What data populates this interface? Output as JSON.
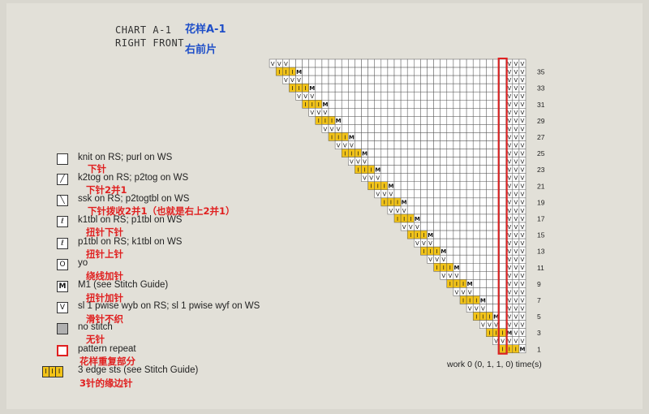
{
  "header": {
    "chart_label": "CHART A-1",
    "piece_label": "RIGHT FRONT",
    "chart_label_cn": "花样A-1",
    "piece_label_cn": "右前片"
  },
  "legend": [
    {
      "symbol": "knit",
      "glyph": "",
      "en": "knit on RS; purl on WS",
      "cn": "下针"
    },
    {
      "symbol": "k2tog",
      "glyph": "╱",
      "en": "k2tog on RS; p2tog on WS",
      "cn": "下针2并1"
    },
    {
      "symbol": "ssk",
      "glyph": "╲",
      "en": "ssk on RS; p2togtbl on WS",
      "cn": "下针拨收2并1（也就是右上2并1）"
    },
    {
      "symbol": "k1tbl",
      "glyph": "ℓ",
      "en": "k1tbl on RS; p1tbl on WS",
      "cn": "扭针下针"
    },
    {
      "symbol": "p1tbl",
      "glyph": "ℓ",
      "en": "p1tbl on RS; k1tbl on WS",
      "cn": "扭针上针"
    },
    {
      "symbol": "yo",
      "glyph": "O",
      "en": "yo",
      "cn": "绕线加针"
    },
    {
      "symbol": "m1",
      "glyph": "M",
      "en": "M1 (see Stitch Guide)",
      "cn": "扭针加针"
    },
    {
      "symbol": "sl1",
      "glyph": "V",
      "en": "sl 1 pwise wyb on RS; sl 1 pwise wyf on WS",
      "cn": "滑针不织"
    },
    {
      "symbol": "no-stitch",
      "glyph": "",
      "en": "no stitch",
      "cn": "无针"
    },
    {
      "symbol": "repeat",
      "glyph": "",
      "en": "pattern repeat",
      "cn": "花样重复部分"
    },
    {
      "symbol": "edge",
      "glyph": "I",
      "en": "3 edge sts (see Stitch Guide)",
      "cn": "3针的缘边针"
    }
  ],
  "row_numbers": [
    "35",
    "33",
    "31",
    "29",
    "27",
    "25",
    "23",
    "21",
    "19",
    "17",
    "15",
    "13",
    "11",
    "9",
    "7",
    "5",
    "3",
    "1"
  ],
  "footer": {
    "work_text": "work 0 (0, 1, 1, 0) time(s)"
  },
  "colors": {
    "background": "#e2e0d8",
    "cell_fill": "#ffffff",
    "edge_fill": "#f2c318",
    "repeat_border": "#e02020",
    "title_cn": "#1f4fc8",
    "legend_cn": "#e02020"
  }
}
